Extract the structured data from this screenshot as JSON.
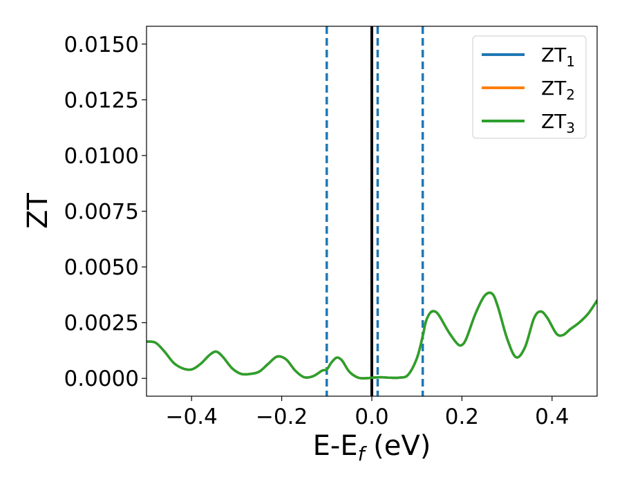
{
  "chart_data": {
    "type": "line",
    "title": "",
    "xlabel": "E-E",
    "xlabel_sub": "f",
    "xlabel_unit": " (eV)",
    "ylabel": "ZT",
    "xlim": [
      -0.5,
      0.5
    ],
    "ylim": [
      -0.0008,
      0.0158
    ],
    "xticks": [
      -0.4,
      -0.2,
      0.0,
      0.2,
      0.4
    ],
    "xtick_labels": [
      "−0.4",
      "−0.2",
      "0.0",
      "0.2",
      "0.4"
    ],
    "yticks": [
      0.0,
      0.0025,
      0.005,
      0.0075,
      0.01,
      0.0125,
      0.015
    ],
    "ytick_labels": [
      "0.0000",
      "0.0025",
      "0.0050",
      "0.0075",
      "0.0100",
      "0.0125",
      "0.0150"
    ],
    "grid": false,
    "legend_position": "top-right",
    "vertical_lines": [
      {
        "x": 0.0,
        "style": "solid",
        "color": "#000000"
      },
      {
        "x": -0.1,
        "style": "dashed",
        "color": "#1f77b4"
      },
      {
        "x": 0.013,
        "style": "dashed",
        "color": "#1f77b4"
      },
      {
        "x": 0.113,
        "style": "dashed",
        "color": "#1f77b4"
      }
    ],
    "x": [
      -0.5,
      -0.48,
      -0.46,
      -0.44,
      -0.42,
      -0.4,
      -0.38,
      -0.36,
      -0.345,
      -0.33,
      -0.31,
      -0.29,
      -0.27,
      -0.25,
      -0.23,
      -0.21,
      -0.19,
      -0.17,
      -0.15,
      -0.13,
      -0.11,
      -0.1,
      -0.09,
      -0.078,
      -0.066,
      -0.05,
      -0.03,
      -0.01,
      0.0,
      0.02,
      0.04,
      0.06,
      0.08,
      0.1,
      0.113,
      0.12,
      0.13,
      0.14,
      0.15,
      0.17,
      0.19,
      0.2,
      0.21,
      0.23,
      0.25,
      0.267,
      0.28,
      0.3,
      0.32,
      0.34,
      0.36,
      0.375,
      0.39,
      0.41,
      0.425,
      0.44,
      0.46,
      0.48,
      0.5
    ],
    "series": [
      {
        "name": "ZT",
        "sub": "1",
        "color": "#1f77b4",
        "values": [
          0.00165,
          0.0016,
          0.0012,
          0.0007,
          0.00045,
          0.0004,
          0.00065,
          0.00105,
          0.0012,
          0.00095,
          0.00045,
          0.0002,
          0.0002,
          0.0003,
          0.00065,
          0.00098,
          0.00085,
          0.00035,
          5e-05,
          0.0001,
          0.00035,
          0.0004,
          0.0007,
          0.00093,
          0.0008,
          0.0003,
          3e-05,
          1e-05,
          3e-05,
          5e-05,
          3e-05,
          3e-05,
          0.00015,
          0.0009,
          0.0019,
          0.00255,
          0.00295,
          0.003,
          0.0028,
          0.0021,
          0.00155,
          0.0015,
          0.0018,
          0.0029,
          0.0037,
          0.0038,
          0.0032,
          0.0018,
          0.00095,
          0.0014,
          0.0027,
          0.003,
          0.0027,
          0.002,
          0.00195,
          0.0022,
          0.0025,
          0.0029,
          0.0035
        ]
      },
      {
        "name": "ZT",
        "sub": "2",
        "color": "#ff7f0e",
        "values": [
          0.00165,
          0.0016,
          0.0012,
          0.0007,
          0.00045,
          0.0004,
          0.00065,
          0.00105,
          0.0012,
          0.00095,
          0.00045,
          0.0002,
          0.0002,
          0.0003,
          0.00065,
          0.00098,
          0.00085,
          0.00035,
          5e-05,
          0.0001,
          0.00035,
          0.0004,
          0.0007,
          0.00093,
          0.0008,
          0.0003,
          3e-05,
          1e-05,
          3e-05,
          5e-05,
          3e-05,
          3e-05,
          0.00015,
          0.0009,
          0.0019,
          0.00255,
          0.00295,
          0.003,
          0.0028,
          0.0021,
          0.00155,
          0.0015,
          0.0018,
          0.0029,
          0.0037,
          0.0038,
          0.0032,
          0.0018,
          0.00095,
          0.0014,
          0.0027,
          0.003,
          0.0027,
          0.002,
          0.00195,
          0.0022,
          0.0025,
          0.0029,
          0.0035
        ]
      },
      {
        "name": "ZT",
        "sub": "3",
        "color": "#2ca02c",
        "values": [
          0.00165,
          0.0016,
          0.0012,
          0.0007,
          0.00045,
          0.0004,
          0.00065,
          0.00105,
          0.0012,
          0.00095,
          0.00045,
          0.0002,
          0.0002,
          0.0003,
          0.00065,
          0.00098,
          0.00085,
          0.00035,
          5e-05,
          0.0001,
          0.00035,
          0.0004,
          0.0007,
          0.00093,
          0.0008,
          0.0003,
          3e-05,
          1e-05,
          3e-05,
          5e-05,
          3e-05,
          3e-05,
          0.00015,
          0.0009,
          0.0019,
          0.00255,
          0.00295,
          0.003,
          0.0028,
          0.0021,
          0.00155,
          0.0015,
          0.0018,
          0.0029,
          0.0037,
          0.0038,
          0.0032,
          0.0018,
          0.00095,
          0.0014,
          0.0027,
          0.003,
          0.0027,
          0.002,
          0.00195,
          0.0022,
          0.0025,
          0.0029,
          0.0035
        ]
      }
    ]
  }
}
